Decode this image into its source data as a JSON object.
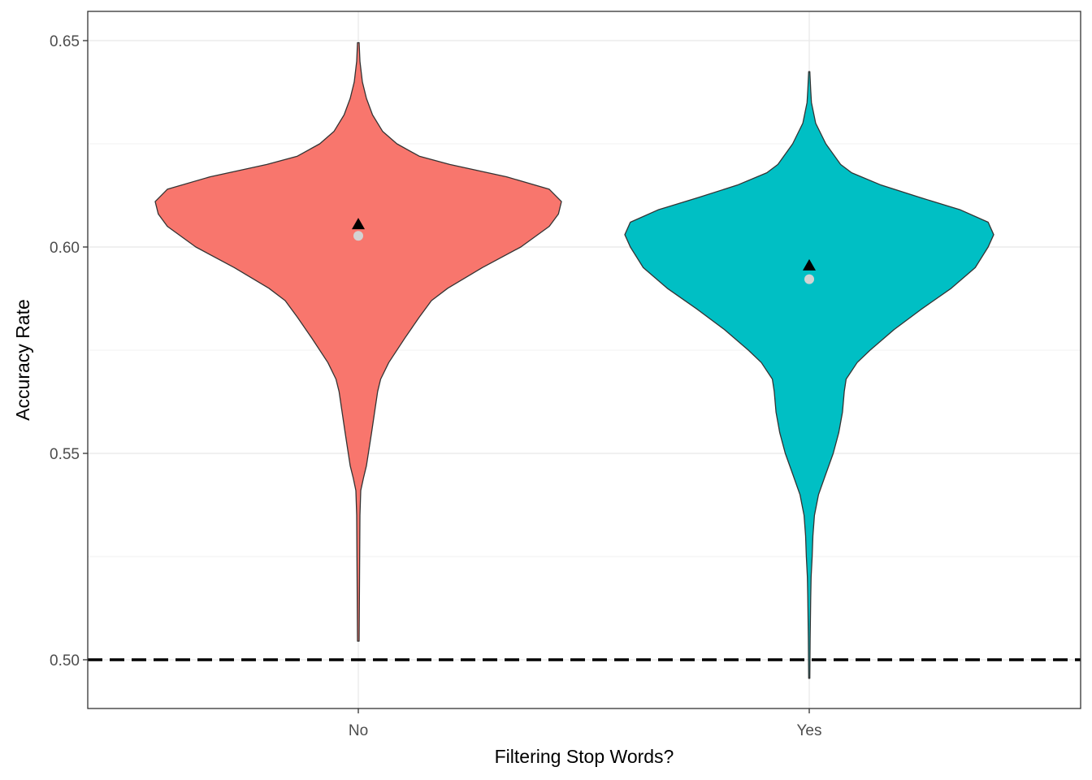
{
  "chart_data": {
    "type": "violin",
    "title": "",
    "xlabel": "Filtering Stop Words?",
    "ylabel": "Accuracy Rate",
    "categories": [
      "No",
      "Yes"
    ],
    "ylim": [
      0.488,
      0.657
    ],
    "yticks": [
      0.5,
      0.55,
      0.6,
      0.65
    ],
    "ytick_labels": [
      "0.50",
      "0.55",
      "0.60",
      "0.65"
    ],
    "grid": true,
    "legend": "none",
    "reference_line": {
      "y": 0.5,
      "style": "dashed",
      "color": "#000000"
    },
    "series": [
      {
        "category": "No",
        "color": "#F8766D",
        "y_min": 0.5045,
        "y_max": 0.6495,
        "mean": 0.6055,
        "median": 0.6027,
        "density_profile": [
          [
            0.5045,
            0.004
          ],
          [
            0.52,
            0.006
          ],
          [
            0.535,
            0.008
          ],
          [
            0.541,
            0.012
          ],
          [
            0.544,
            0.025
          ],
          [
            0.547,
            0.04
          ],
          [
            0.555,
            0.065
          ],
          [
            0.565,
            0.095
          ],
          [
            0.568,
            0.11
          ],
          [
            0.572,
            0.15
          ],
          [
            0.578,
            0.23
          ],
          [
            0.583,
            0.3
          ],
          [
            0.587,
            0.36
          ],
          [
            0.59,
            0.44
          ],
          [
            0.595,
            0.61
          ],
          [
            0.6,
            0.8
          ],
          [
            0.605,
            0.94
          ],
          [
            0.608,
            0.985
          ],
          [
            0.611,
            1.0
          ],
          [
            0.614,
            0.94
          ],
          [
            0.617,
            0.73
          ],
          [
            0.62,
            0.45
          ],
          [
            0.622,
            0.3
          ],
          [
            0.625,
            0.19
          ],
          [
            0.628,
            0.12
          ],
          [
            0.632,
            0.07
          ],
          [
            0.636,
            0.04
          ],
          [
            0.64,
            0.02
          ],
          [
            0.645,
            0.008
          ],
          [
            0.6495,
            0.004
          ]
        ]
      },
      {
        "category": "Yes",
        "color": "#00BFC4",
        "y_min": 0.4955,
        "y_max": 0.6425,
        "mean": 0.5955,
        "median": 0.5922,
        "density_profile": [
          [
            0.4955,
            0.003
          ],
          [
            0.505,
            0.005
          ],
          [
            0.515,
            0.008
          ],
          [
            0.52,
            0.01
          ],
          [
            0.525,
            0.016
          ],
          [
            0.53,
            0.02
          ],
          [
            0.535,
            0.028
          ],
          [
            0.54,
            0.05
          ],
          [
            0.545,
            0.09
          ],
          [
            0.55,
            0.13
          ],
          [
            0.555,
            0.16
          ],
          [
            0.56,
            0.18
          ],
          [
            0.565,
            0.19
          ],
          [
            0.568,
            0.2
          ],
          [
            0.572,
            0.26
          ],
          [
            0.575,
            0.33
          ],
          [
            0.58,
            0.46
          ],
          [
            0.585,
            0.61
          ],
          [
            0.59,
            0.77
          ],
          [
            0.595,
            0.9
          ],
          [
            0.6,
            0.97
          ],
          [
            0.603,
            1.0
          ],
          [
            0.606,
            0.97
          ],
          [
            0.609,
            0.82
          ],
          [
            0.612,
            0.6
          ],
          [
            0.615,
            0.39
          ],
          [
            0.618,
            0.23
          ],
          [
            0.62,
            0.17
          ],
          [
            0.625,
            0.09
          ],
          [
            0.63,
            0.035
          ],
          [
            0.635,
            0.012
          ],
          [
            0.638,
            0.008
          ],
          [
            0.6425,
            0.003
          ]
        ]
      }
    ],
    "mean_marker": {
      "shape": "triangle",
      "color": "#000000"
    },
    "median_marker": {
      "shape": "circle",
      "color": "#D3D3D3"
    }
  }
}
